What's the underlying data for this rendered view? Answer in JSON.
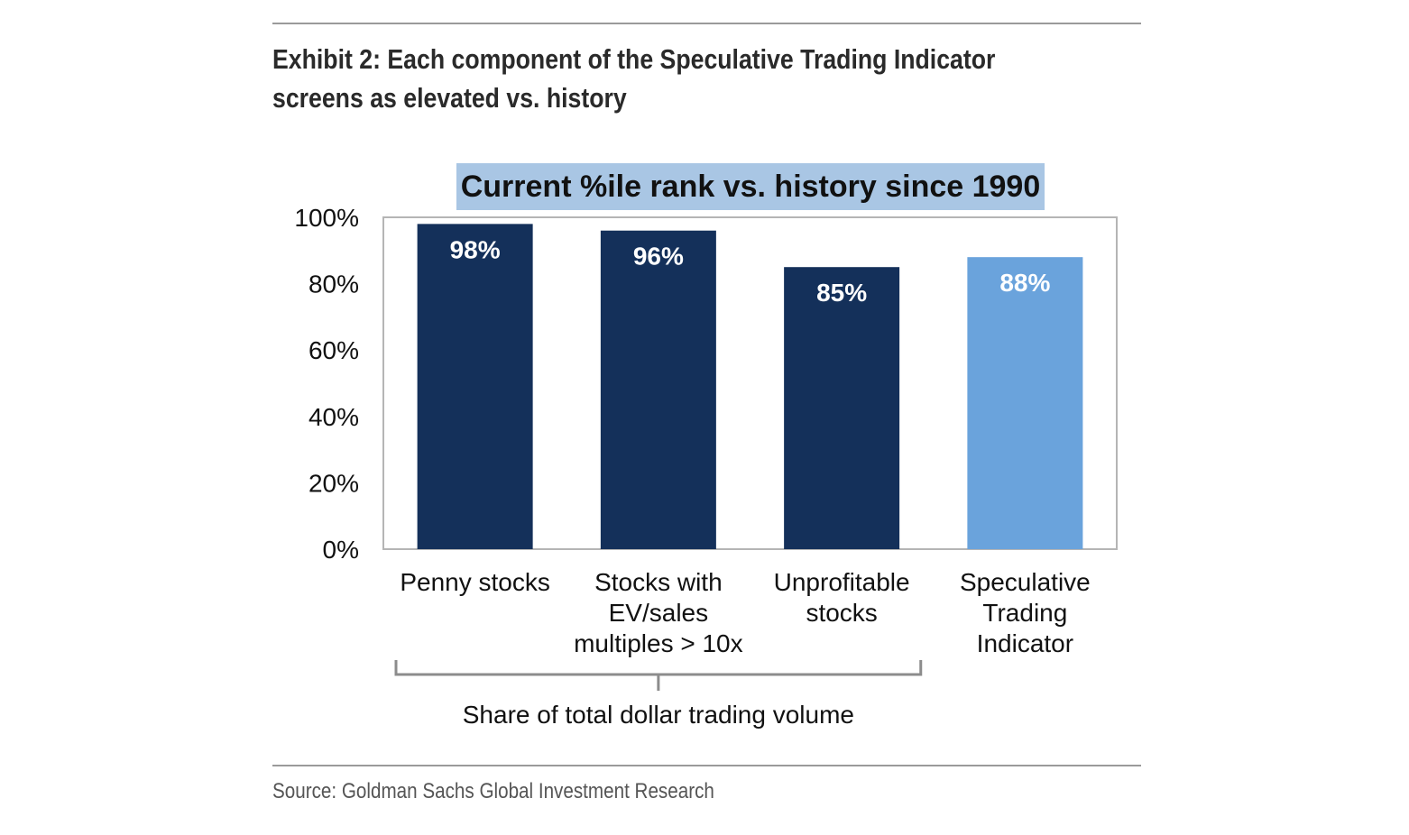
{
  "exhibit": {
    "title_line1": "Exhibit 2: Each component of the Speculative Trading Indicator",
    "title_line2": "screens as elevated vs. history",
    "source": "Source: Goldman Sachs Global Investment Research"
  },
  "chart_data": {
    "type": "bar",
    "title": "Current %ile rank vs. history since 1990",
    "categories": [
      [
        "Penny stocks"
      ],
      [
        "Stocks with",
        "EV/sales",
        "multiples > 10x"
      ],
      [
        "Unprofitable",
        "stocks"
      ],
      [
        "Speculative",
        "Trading",
        "Indicator"
      ]
    ],
    "values": [
      98,
      96,
      85,
      88
    ],
    "data_labels": [
      "98%",
      "96%",
      "85%",
      "88%"
    ],
    "bar_colors": [
      "#14305a",
      "#14305a",
      "#14305a",
      "#6aa3dc"
    ],
    "ylim": [
      0,
      100
    ],
    "yticks": [
      0,
      20,
      40,
      60,
      80,
      100
    ],
    "ytick_labels": [
      "0%",
      "20%",
      "40%",
      "60%",
      "80%",
      "100%"
    ],
    "xlabel": "",
    "ylabel": "",
    "grid": false,
    "bracket": {
      "label": "Share of total dollar trading volume",
      "spans_categories": [
        0,
        1,
        2
      ]
    },
    "title_highlight_color": "#a9c6e4"
  }
}
